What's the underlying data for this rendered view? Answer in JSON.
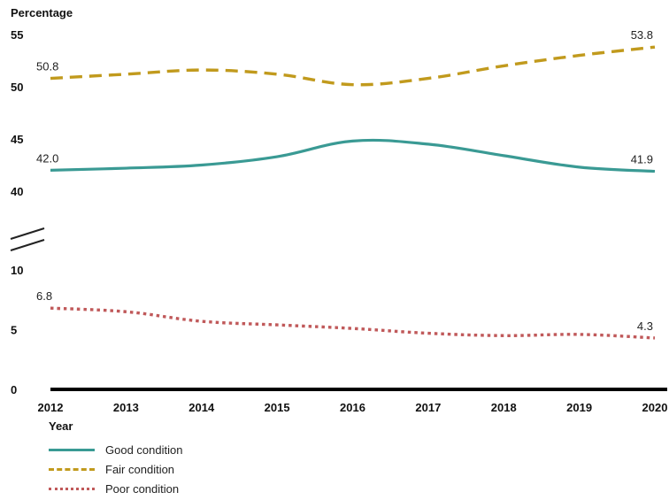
{
  "chart_data": {
    "type": "line",
    "ylabel": "Percentage",
    "xlabel": "Year",
    "x": [
      2012,
      2013,
      2014,
      2015,
      2016,
      2017,
      2018,
      2019,
      2020
    ],
    "y_ticks_upper": [
      40,
      45,
      50,
      55
    ],
    "y_ticks_lower": [
      0,
      5,
      10
    ],
    "y_axis_break": "between 10 and 40",
    "series": [
      {
        "name": "Good condition",
        "color": "#3a9a94",
        "style": "solid",
        "values": [
          42.0,
          42.2,
          42.5,
          43.3,
          44.8,
          44.5,
          43.4,
          42.3,
          41.9
        ],
        "labels": {
          "first": "42.0",
          "last": "41.9"
        }
      },
      {
        "name": "Fair condition",
        "color": "#c19a1d",
        "style": "dashed",
        "values": [
          50.8,
          51.2,
          51.6,
          51.2,
          50.2,
          50.8,
          52.0,
          53.0,
          53.8
        ],
        "labels": {
          "first": "50.8",
          "last": "53.8"
        }
      },
      {
        "name": "Poor condition",
        "color": "#c0595a",
        "style": "dotted",
        "values": [
          6.8,
          6.5,
          5.7,
          5.4,
          5.1,
          4.7,
          4.5,
          4.6,
          4.3
        ],
        "labels": {
          "first": "6.8",
          "last": "4.3"
        }
      }
    ],
    "legend_position": "bottom-left",
    "grid": false
  }
}
